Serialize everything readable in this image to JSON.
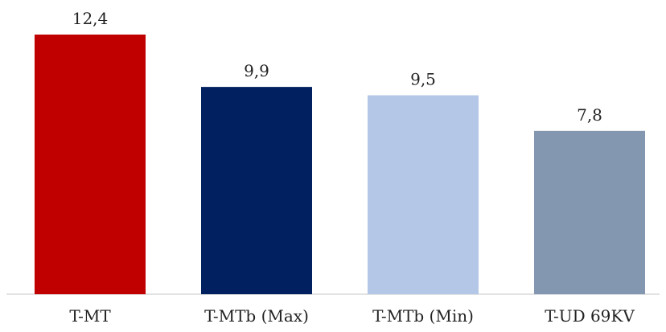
{
  "chart_data": {
    "type": "bar",
    "categories": [
      "T-MT",
      "T-MTb (Max)",
      "T-MTb (Min)",
      "T-UD 69KV"
    ],
    "values": [
      12.4,
      9.9,
      9.5,
      7.8
    ],
    "value_labels": [
      "12,4",
      "9,9",
      "9,5",
      "7,8"
    ],
    "colors": [
      "#c00000",
      "#002060",
      "#b4c7e7",
      "#8497b0"
    ],
    "title": "",
    "xlabel": "",
    "ylabel": "",
    "grid": false,
    "legend": "none"
  }
}
